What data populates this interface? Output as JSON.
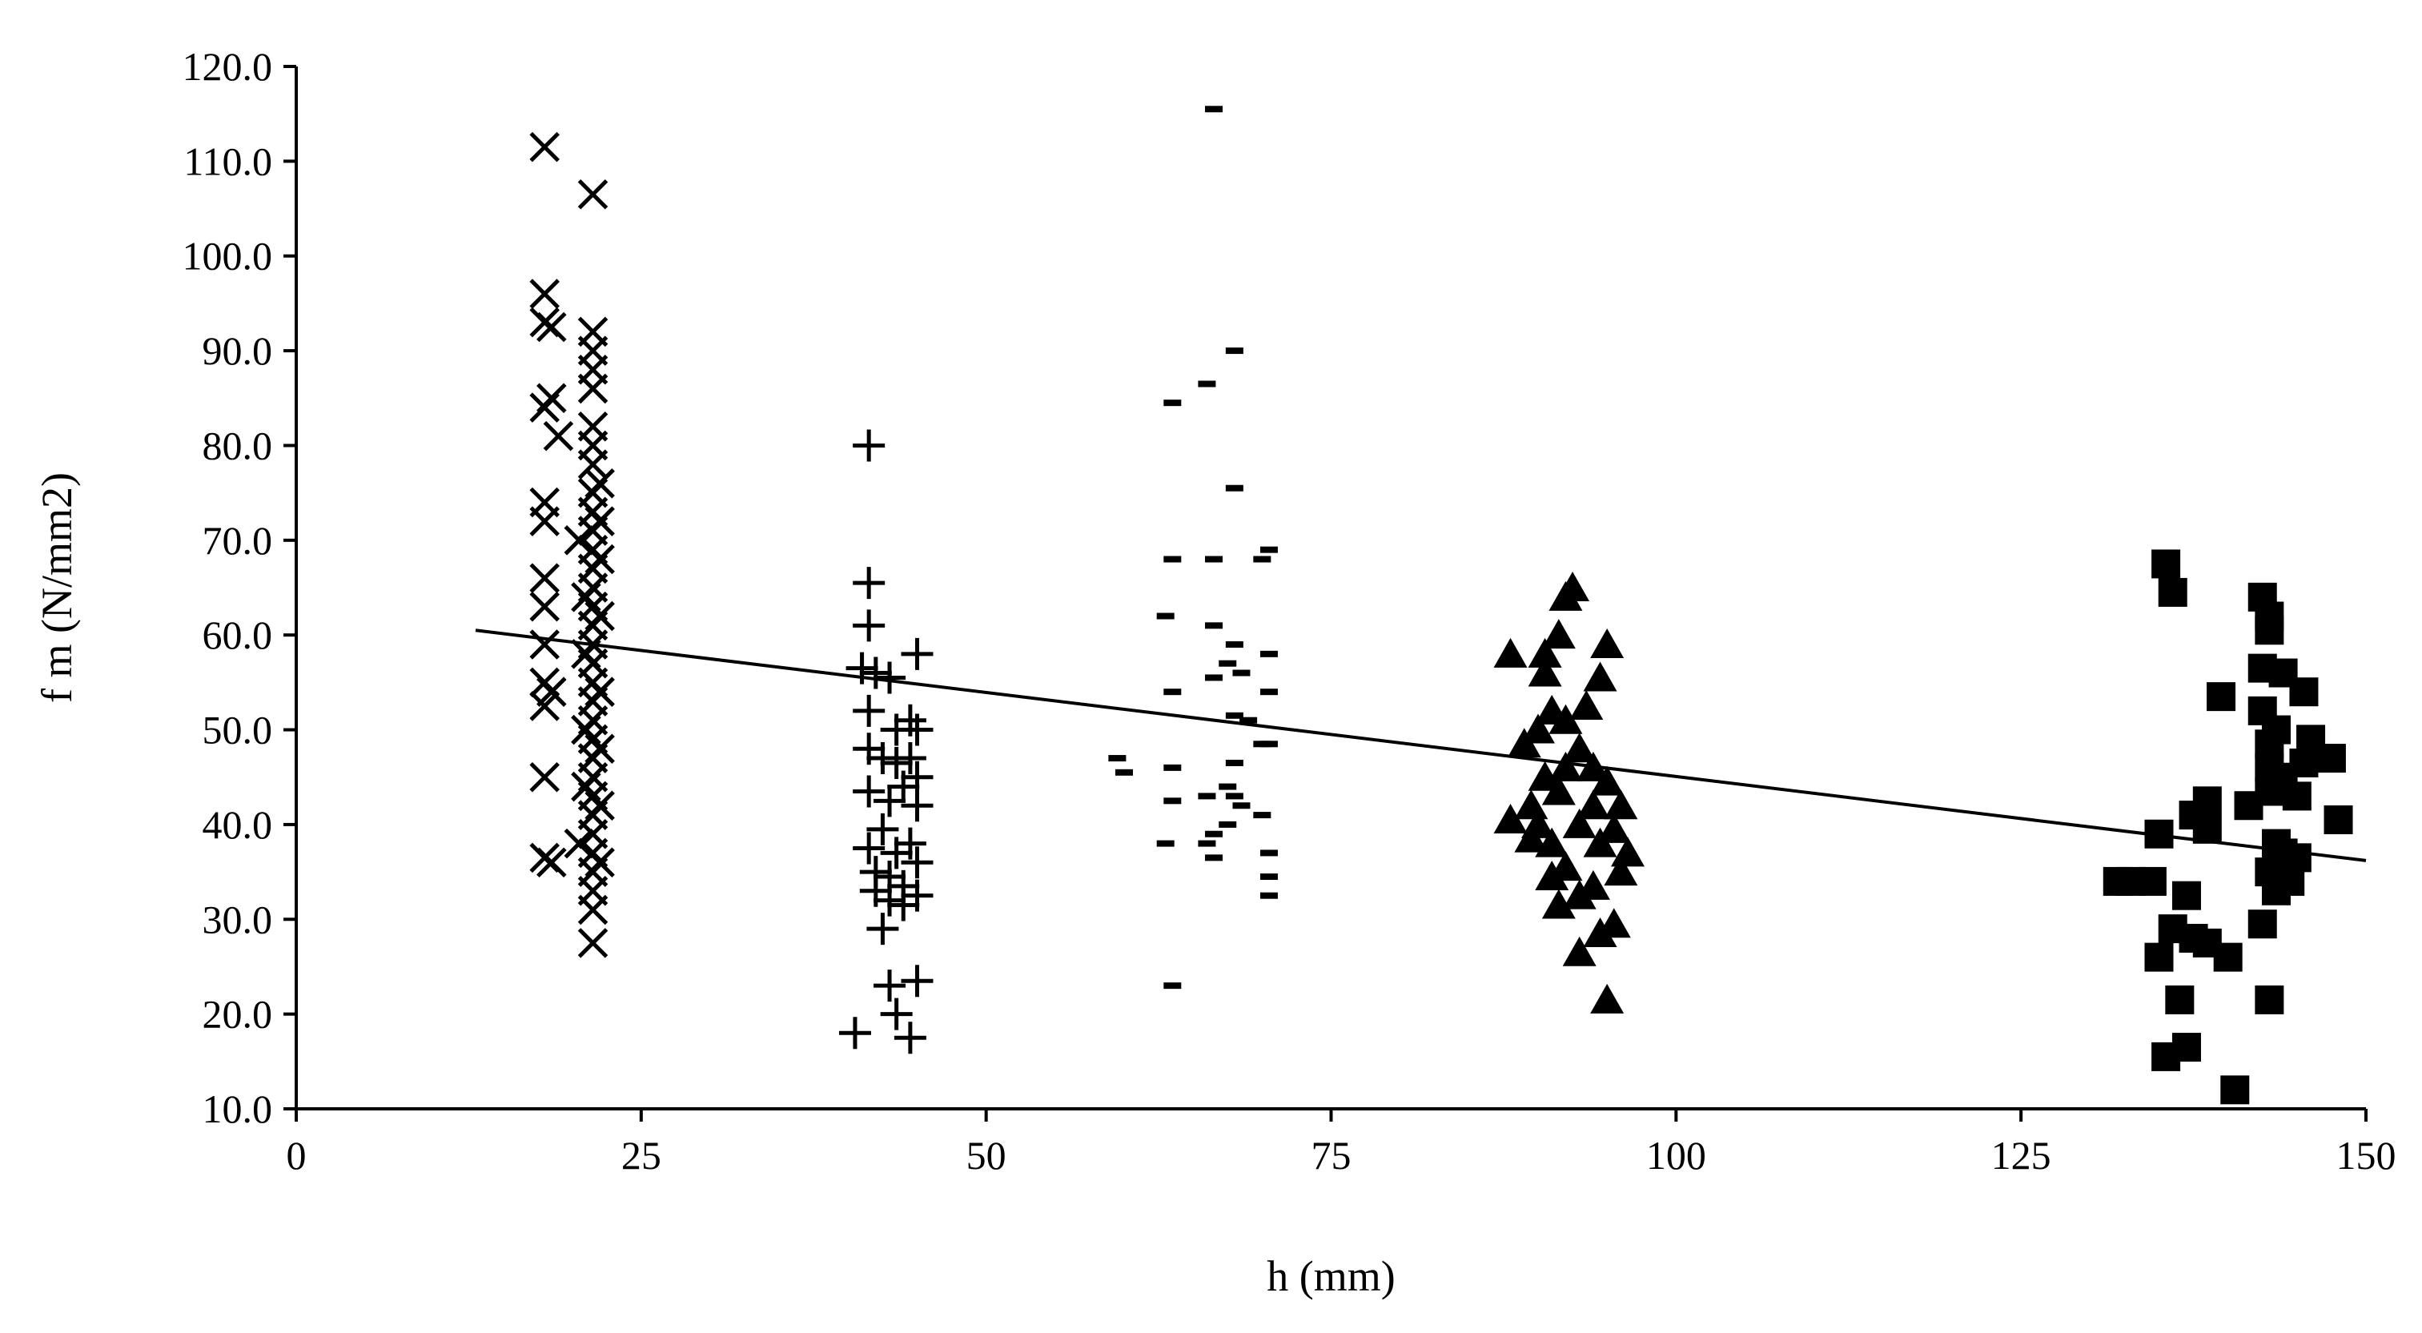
{
  "chart_data": {
    "type": "scatter",
    "xlabel": "h (mm)",
    "ylabel": "f m (N/mm2)",
    "xlim": [
      0,
      150
    ],
    "ylim": [
      10,
      120
    ],
    "xticks": [
      "0",
      "25",
      "50",
      "75",
      "100",
      "125",
      "150"
    ],
    "yticks": [
      "10.0",
      "20.0",
      "30.0",
      "40.0",
      "50.0",
      "60.0",
      "70.0",
      "80.0",
      "90.0",
      "100.0",
      "110.0",
      "120.0"
    ],
    "grid": false,
    "legend": "none",
    "series": [
      {
        "marker": "x",
        "points": [
          [
            18.0,
            111.5
          ],
          [
            21.5,
            106.5
          ],
          [
            18.0,
            96.0
          ],
          [
            18.0,
            93.0
          ],
          [
            18.5,
            92.5
          ],
          [
            18.5,
            85.0
          ],
          [
            18.0,
            84.0
          ],
          [
            19.0,
            81.0
          ],
          [
            18.0,
            74.0
          ],
          [
            18.0,
            72.0
          ],
          [
            18.0,
            66.0
          ],
          [
            18.0,
            63.0
          ],
          [
            18.0,
            59.0
          ],
          [
            18.0,
            55.0
          ],
          [
            18.5,
            54.0
          ],
          [
            18.0,
            52.5
          ],
          [
            18.0,
            45.0
          ],
          [
            18.0,
            36.5
          ],
          [
            18.5,
            36.0
          ],
          [
            21.5,
            92.0
          ],
          [
            21.5,
            90.0
          ],
          [
            21.5,
            88.0
          ],
          [
            21.5,
            86.0
          ],
          [
            21.5,
            82.0
          ],
          [
            21.5,
            80.0
          ],
          [
            21.5,
            78.0
          ],
          [
            21.5,
            75.0
          ],
          [
            21.5,
            73.0
          ],
          [
            21.5,
            71.0
          ],
          [
            21.5,
            69.0
          ],
          [
            21.5,
            67.0
          ],
          [
            21.5,
            65.0
          ],
          [
            21.5,
            63.0
          ],
          [
            21.5,
            61.0
          ],
          [
            21.5,
            59.0
          ],
          [
            21.5,
            57.0
          ],
          [
            21.5,
            55.0
          ],
          [
            21.5,
            53.0
          ],
          [
            21.5,
            51.0
          ],
          [
            21.5,
            49.0
          ],
          [
            21.5,
            47.0
          ],
          [
            21.5,
            45.0
          ],
          [
            21.5,
            43.0
          ],
          [
            21.5,
            41.0
          ],
          [
            21.5,
            39.0
          ],
          [
            21.5,
            37.0
          ],
          [
            21.5,
            35.0
          ],
          [
            21.5,
            33.0
          ],
          [
            21.5,
            31.0
          ],
          [
            21.5,
            27.5
          ],
          [
            21.0,
            64.0
          ],
          [
            21.0,
            58.0
          ],
          [
            21.0,
            50.0
          ],
          [
            21.0,
            44.0
          ],
          [
            20.5,
            38.0
          ],
          [
            20.5,
            70.0
          ],
          [
            22.0,
            62.0
          ],
          [
            22.0,
            54.0
          ],
          [
            22.0,
            48.0
          ],
          [
            22.0,
            42.0
          ],
          [
            22.0,
            36.0
          ],
          [
            22.0,
            68.0
          ],
          [
            22.0,
            72.0
          ],
          [
            22.0,
            76.0
          ]
        ]
      },
      {
        "marker": "plus",
        "points": [
          [
            41.5,
            80.0
          ],
          [
            41.5,
            65.5
          ],
          [
            41.5,
            61.0
          ],
          [
            41.0,
            56.5
          ],
          [
            42.0,
            56.0
          ],
          [
            43.0,
            55.5
          ],
          [
            45.0,
            58.0
          ],
          [
            41.5,
            52.0
          ],
          [
            43.5,
            50.0
          ],
          [
            44.5,
            51.0
          ],
          [
            45.0,
            50.0
          ],
          [
            41.5,
            48.0
          ],
          [
            42.5,
            47.0
          ],
          [
            43.5,
            46.5
          ],
          [
            44.5,
            47.0
          ],
          [
            45.0,
            45.0
          ],
          [
            41.5,
            43.5
          ],
          [
            43.0,
            42.5
          ],
          [
            44.0,
            44.0
          ],
          [
            45.0,
            42.0
          ],
          [
            42.5,
            39.5
          ],
          [
            41.5,
            37.5
          ],
          [
            43.5,
            37.0
          ],
          [
            44.5,
            38.0
          ],
          [
            45.0,
            36.0
          ],
          [
            42.0,
            35.0
          ],
          [
            43.0,
            34.5
          ],
          [
            44.0,
            33.5
          ],
          [
            45.0,
            32.5
          ],
          [
            42.0,
            33.0
          ],
          [
            43.0,
            32.0
          ],
          [
            44.0,
            31.5
          ],
          [
            42.5,
            29.0
          ],
          [
            43.0,
            23.0
          ],
          [
            45.0,
            23.5
          ],
          [
            43.5,
            20.0
          ],
          [
            40.5,
            18.0
          ],
          [
            44.5,
            17.5
          ]
        ]
      },
      {
        "marker": "dash",
        "points": [
          [
            66.5,
            115.5
          ],
          [
            68.0,
            90.0
          ],
          [
            66.0,
            86.5
          ],
          [
            63.5,
            84.5
          ],
          [
            68.0,
            75.5
          ],
          [
            63.5,
            68.0
          ],
          [
            66.5,
            68.0
          ],
          [
            70.5,
            69.0
          ],
          [
            70.0,
            68.0
          ],
          [
            63.0,
            62.0
          ],
          [
            66.5,
            61.0
          ],
          [
            68.0,
            59.0
          ],
          [
            67.5,
            57.0
          ],
          [
            66.5,
            55.5
          ],
          [
            68.5,
            56.0
          ],
          [
            70.5,
            58.0
          ],
          [
            63.5,
            54.0
          ],
          [
            70.5,
            54.0
          ],
          [
            68.0,
            51.5
          ],
          [
            69.0,
            51.0
          ],
          [
            70.0,
            48.5
          ],
          [
            70.5,
            48.5
          ],
          [
            59.5,
            47.0
          ],
          [
            60.0,
            45.5
          ],
          [
            63.5,
            46.0
          ],
          [
            68.0,
            46.5
          ],
          [
            67.5,
            44.0
          ],
          [
            68.0,
            43.0
          ],
          [
            66.0,
            43.0
          ],
          [
            63.5,
            42.5
          ],
          [
            68.5,
            42.0
          ],
          [
            70.0,
            41.0
          ],
          [
            67.5,
            40.0
          ],
          [
            66.5,
            39.0
          ],
          [
            66.0,
            38.0
          ],
          [
            63.0,
            38.0
          ],
          [
            70.5,
            37.0
          ],
          [
            66.5,
            36.5
          ],
          [
            70.5,
            34.5
          ],
          [
            70.5,
            32.5
          ],
          [
            63.5,
            23.0
          ]
        ]
      },
      {
        "marker": "triangle",
        "points": [
          [
            92.5,
            65.0
          ],
          [
            92.0,
            64.0
          ],
          [
            88.0,
            58.0
          ],
          [
            90.5,
            58.0
          ],
          [
            91.5,
            60.0
          ],
          [
            95.0,
            59.0
          ],
          [
            90.5,
            56.0
          ],
          [
            94.5,
            55.5
          ],
          [
            91.0,
            52.0
          ],
          [
            92.0,
            51.0
          ],
          [
            93.5,
            52.5
          ],
          [
            90.0,
            50.0
          ],
          [
            93.0,
            48.0
          ],
          [
            89.0,
            48.5
          ],
          [
            92.0,
            46.0
          ],
          [
            94.0,
            46.0
          ],
          [
            90.5,
            45.0
          ],
          [
            95.0,
            44.5
          ],
          [
            91.5,
            43.5
          ],
          [
            89.5,
            42.0
          ],
          [
            94.0,
            42.0
          ],
          [
            96.0,
            42.0
          ],
          [
            88.0,
            40.5
          ],
          [
            90.0,
            40.0
          ],
          [
            93.0,
            40.0
          ],
          [
            95.5,
            39.5
          ],
          [
            89.5,
            38.5
          ],
          [
            91.0,
            38.0
          ],
          [
            94.5,
            38.0
          ],
          [
            96.5,
            37.0
          ],
          [
            92.0,
            35.5
          ],
          [
            96.0,
            35.0
          ],
          [
            91.0,
            34.5
          ],
          [
            94.0,
            33.5
          ],
          [
            93.0,
            32.5
          ],
          [
            91.5,
            31.5
          ],
          [
            95.5,
            29.5
          ],
          [
            94.5,
            28.5
          ],
          [
            93.0,
            26.5
          ],
          [
            95.0,
            21.5
          ]
        ]
      },
      {
        "marker": "square",
        "points": [
          [
            135.5,
            67.5
          ],
          [
            136.0,
            64.5
          ],
          [
            142.5,
            64.0
          ],
          [
            143.0,
            62.0
          ],
          [
            143.0,
            60.5
          ],
          [
            142.5,
            56.5
          ],
          [
            144.0,
            56.0
          ],
          [
            145.5,
            54.0
          ],
          [
            139.5,
            53.5
          ],
          [
            142.5,
            52.0
          ],
          [
            143.5,
            50.0
          ],
          [
            143.0,
            48.5
          ],
          [
            146.0,
            49.0
          ],
          [
            147.5,
            47.0
          ],
          [
            143.0,
            46.0
          ],
          [
            145.5,
            46.5
          ],
          [
            144.0,
            45.0
          ],
          [
            143.0,
            43.5
          ],
          [
            145.0,
            43.0
          ],
          [
            138.5,
            42.5
          ],
          [
            141.5,
            42.0
          ],
          [
            137.5,
            41.0
          ],
          [
            148.0,
            40.5
          ],
          [
            138.5,
            39.5
          ],
          [
            135.0,
            39.0
          ],
          [
            143.5,
            38.0
          ],
          [
            144.0,
            37.0
          ],
          [
            145.0,
            36.5
          ],
          [
            143.0,
            35.0
          ],
          [
            144.5,
            34.0
          ],
          [
            132.0,
            34.0
          ],
          [
            133.0,
            34.0
          ],
          [
            134.5,
            34.0
          ],
          [
            143.5,
            33.0
          ],
          [
            137.0,
            32.5
          ],
          [
            142.5,
            29.5
          ],
          [
            136.0,
            29.0
          ],
          [
            137.5,
            28.0
          ],
          [
            138.5,
            27.5
          ],
          [
            135.0,
            26.0
          ],
          [
            140.0,
            26.0
          ],
          [
            136.5,
            21.5
          ],
          [
            143.0,
            21.5
          ],
          [
            137.0,
            16.5
          ],
          [
            135.5,
            15.5
          ],
          [
            140.5,
            12.0
          ]
        ]
      }
    ],
    "trendline": {
      "x": [
        13.0,
        150.0
      ],
      "y": [
        60.5,
        36.2
      ]
    }
  }
}
